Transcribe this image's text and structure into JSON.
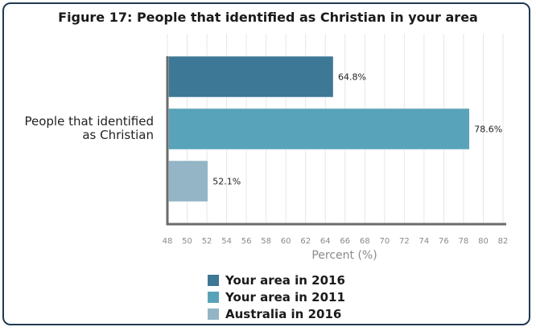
{
  "chart_data": {
    "type": "bar",
    "orientation": "horizontal",
    "title": "Figure 17: People that identified as Christian in your area",
    "categories": [
      "People that identified\nas Christian"
    ],
    "series": [
      {
        "name": "Your area in 2016",
        "values": [
          64.8
        ],
        "label": "64.8%",
        "color": "#3d7896"
      },
      {
        "name": "Your area in 2011",
        "values": [
          78.6
        ],
        "label": "78.6%",
        "color": "#58a3b9"
      },
      {
        "name": "Australia in 2016",
        "values": [
          52.1
        ],
        "label": "52.1%",
        "color": "#93b5c6"
      }
    ],
    "xlabel": "Percent (%)",
    "ylabel": "",
    "xlim": [
      48,
      82
    ],
    "xticks": [
      48,
      50,
      52,
      54,
      56,
      58,
      60,
      62,
      64,
      66,
      68,
      70,
      72,
      74,
      76,
      78,
      80,
      82
    ],
    "grid": "vertical",
    "legend": "bottom"
  }
}
